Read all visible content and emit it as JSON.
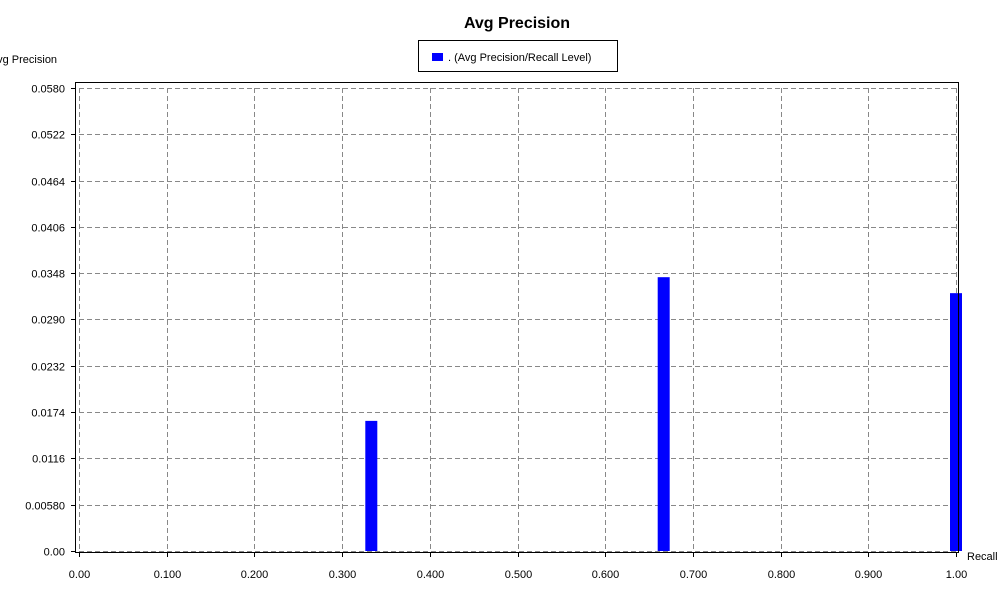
{
  "chart_data": {
    "type": "bar",
    "title": "Avg Precision",
    "xlabel": "Recall",
    "ylabel": "Avg Precision",
    "legend": {
      "entries": [
        {
          "label": ". (Avg Precision/Recall Level)",
          "color": "#0000ff"
        }
      ],
      "placement": "top-center"
    },
    "grid": true,
    "xlim": [
      0.0,
      1.0
    ],
    "ylim": [
      0.0,
      0.058
    ],
    "x_ticks": [
      "0.00",
      "0.100",
      "0.200",
      "0.300",
      "0.400",
      "0.500",
      "0.600",
      "0.700",
      "0.800",
      "0.900",
      "1.00"
    ],
    "y_ticks": [
      "0.00",
      "0.00580",
      "0.0116",
      "0.0174",
      "0.0232",
      "0.0290",
      "0.0348",
      "0.0406",
      "0.0464",
      "0.0522",
      "0.0580"
    ],
    "series": [
      {
        "name": ". (Avg Precision/Recall Level)",
        "color": "#0000ff",
        "x": [
          0.3333,
          0.6667,
          1.0
        ],
        "values": [
          0.0163,
          0.0343,
          0.0323
        ]
      }
    ]
  }
}
